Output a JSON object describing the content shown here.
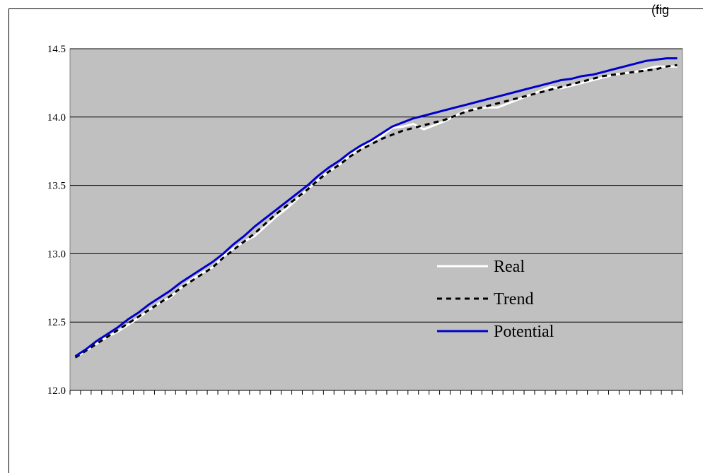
{
  "corner_text": "(fig",
  "colors": {
    "plot_background": "#c0c0c0",
    "real": "#ffffff",
    "trend": "#000000",
    "potential": "#0000cc",
    "gridline": "#000000"
  },
  "chart_data": {
    "type": "line",
    "title": "",
    "xlabel": "",
    "ylabel": "",
    "ylim": [
      12.0,
      14.5
    ],
    "yticks": [
      "12.0",
      "12.5",
      "13.0",
      "13.5",
      "14.0",
      "14.5"
    ],
    "x_tick_count": 58,
    "grid": "horizontal",
    "legend_placement": "center-right",
    "x": [
      0,
      1,
      2,
      3,
      4,
      5,
      6,
      7,
      8,
      9,
      10,
      11,
      12,
      13,
      14,
      15,
      16,
      17,
      18,
      19,
      20,
      21,
      22,
      23,
      24,
      25,
      26,
      27,
      28,
      29,
      30,
      31,
      32,
      33,
      34,
      35,
      36,
      37,
      38,
      39,
      40,
      41,
      42,
      43,
      44,
      45,
      46,
      47,
      48,
      49,
      50,
      51,
      52,
      53,
      54,
      55,
      56,
      57
    ],
    "series": [
      {
        "name": "Real",
        "style": "solid",
        "values": [
          12.24,
          12.29,
          12.34,
          12.39,
          12.43,
          12.48,
          12.53,
          12.59,
          12.64,
          12.68,
          12.75,
          12.81,
          12.86,
          12.9,
          12.98,
          13.04,
          13.09,
          13.13,
          13.2,
          13.27,
          13.33,
          13.4,
          13.47,
          13.54,
          13.6,
          13.65,
          13.72,
          13.77,
          13.82,
          13.86,
          13.92,
          13.93,
          13.95,
          13.91,
          13.94,
          13.97,
          14.01,
          14.05,
          14.06,
          14.07,
          14.07,
          14.1,
          14.13,
          14.16,
          14.19,
          14.22,
          14.21,
          14.23,
          14.25,
          14.27,
          14.29,
          14.31,
          14.32,
          14.33,
          14.35,
          14.37,
          14.37,
          14.37
        ]
      },
      {
        "name": "Trend",
        "style": "dashed",
        "values": [
          12.24,
          12.29,
          12.34,
          12.39,
          12.44,
          12.49,
          12.54,
          12.59,
          12.64,
          12.69,
          12.75,
          12.8,
          12.85,
          12.9,
          12.97,
          13.03,
          13.09,
          13.15,
          13.22,
          13.29,
          13.35,
          13.41,
          13.47,
          13.54,
          13.6,
          13.65,
          13.71,
          13.76,
          13.8,
          13.84,
          13.87,
          13.9,
          13.92,
          13.94,
          13.96,
          13.98,
          14.01,
          14.04,
          14.06,
          14.08,
          14.1,
          14.12,
          14.14,
          14.16,
          14.18,
          14.2,
          14.22,
          14.24,
          14.26,
          14.28,
          14.3,
          14.31,
          14.32,
          14.33,
          14.34,
          14.35,
          14.37,
          14.38
        ]
      },
      {
        "name": "Potential",
        "style": "solid",
        "values": [
          12.25,
          12.3,
          12.36,
          12.41,
          12.46,
          12.52,
          12.57,
          12.63,
          12.68,
          12.73,
          12.79,
          12.84,
          12.89,
          12.94,
          13.0,
          13.07,
          13.13,
          13.2,
          13.26,
          13.32,
          13.38,
          13.44,
          13.5,
          13.57,
          13.63,
          13.68,
          13.74,
          13.79,
          13.83,
          13.88,
          13.93,
          13.96,
          13.99,
          14.01,
          14.03,
          14.05,
          14.07,
          14.09,
          14.11,
          14.13,
          14.15,
          14.17,
          14.19,
          14.21,
          14.23,
          14.25,
          14.27,
          14.28,
          14.3,
          14.31,
          14.33,
          14.35,
          14.37,
          14.39,
          14.41,
          14.42,
          14.43,
          14.43
        ]
      }
    ]
  }
}
